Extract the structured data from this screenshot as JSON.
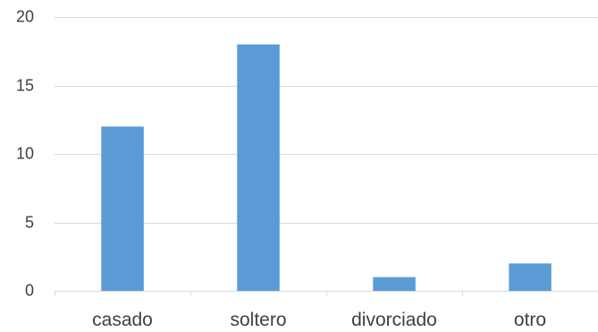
{
  "chart_data": {
    "type": "bar",
    "categories": [
      "casado",
      "soltero",
      "divorciado",
      "otro"
    ],
    "values": [
      12,
      18,
      1,
      2
    ],
    "ylim": [
      0,
      20
    ],
    "yticks": [
      0,
      5,
      10,
      15,
      20
    ],
    "grid": true,
    "title": "",
    "xlabel": "",
    "ylabel": "",
    "legend": "none",
    "bar_color": "#5b9bd5",
    "grid_color": "#d9d9d9",
    "text_color": "#404040"
  }
}
